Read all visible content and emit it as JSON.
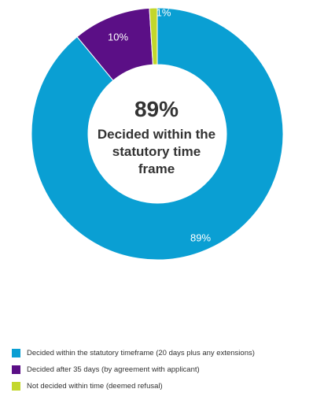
{
  "chart_data": {
    "type": "pie",
    "variant": "donut",
    "center": {
      "value": "89%",
      "label": "Decided within the statutory time frame"
    },
    "slices": [
      {
        "label": "Decided within the statutory timeframe (20 days plus any extensions)",
        "value": 89,
        "data_label": "89%",
        "color": "#0a9fd3"
      },
      {
        "label": "Decided after 35 days (by agreement with applicant)",
        "value": 10,
        "data_label": "10%",
        "color": "#5b0f86"
      },
      {
        "label": "Not decided within time (deemed refusal)",
        "value": 1,
        "data_label": "1%",
        "color": "#c3d72c"
      }
    ],
    "legend_position": "bottom"
  }
}
